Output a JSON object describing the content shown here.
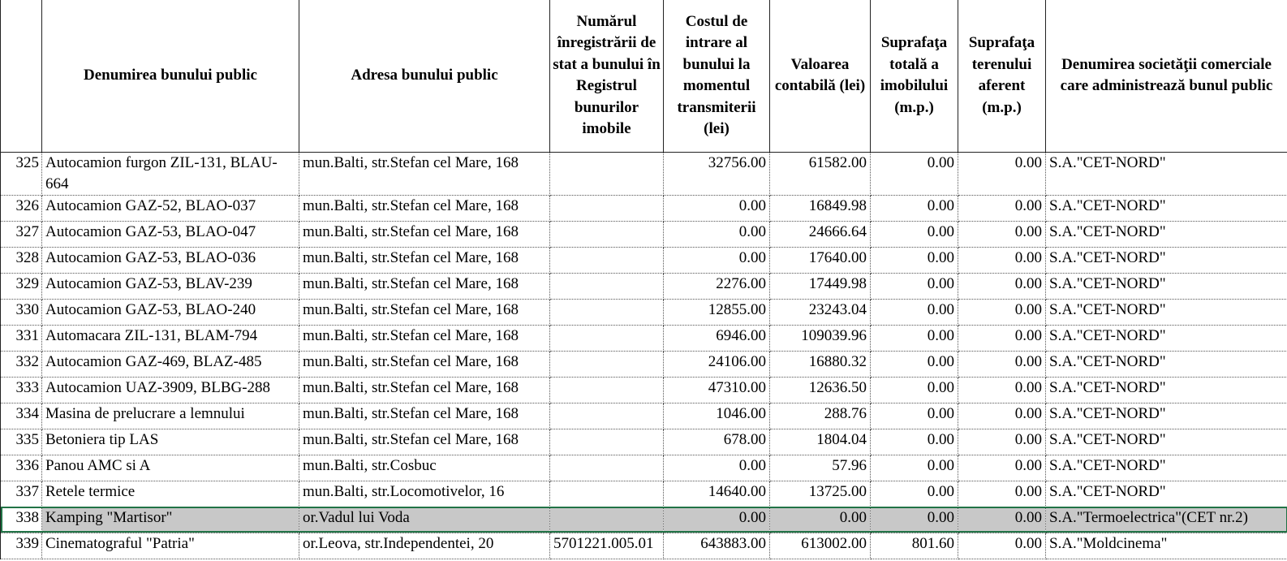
{
  "headers": {
    "num": "",
    "name": "Denumirea bunului public",
    "address": "Adresa bunului public",
    "reg": "Numărul înregistrării de stat a bunului în Registrul bunurilor imobile",
    "cost": "Costul de intrare al bunului la momentul transmiterii (lei)",
    "book": "Valoarea contabilă (lei)",
    "area_total": "Suprafaţa totală a imobilului (m.p.)",
    "area_land": "Suprafaţa terenului aferent (m.p.)",
    "company": "Denumirea societăţii comerciale care administrează bunul public"
  },
  "rows": [
    {
      "num": "325",
      "name": "Autocamion furgon ZIL-131, BLAU-664",
      "address": "mun.Balti, str.Stefan cel Mare, 168",
      "reg": "",
      "cost": "32756.00",
      "book": "61582.00",
      "area_total": "0.00",
      "area_land": "0.00",
      "company": "S.A.\"CET-NORD\""
    },
    {
      "num": "326",
      "name": "Autocamion GAZ-52, BLAO-037",
      "address": "mun.Balti, str.Stefan cel Mare, 168",
      "reg": "",
      "cost": "0.00",
      "book": "16849.98",
      "area_total": "0.00",
      "area_land": "0.00",
      "company": "S.A.\"CET-NORD\""
    },
    {
      "num": "327",
      "name": "Autocamion GAZ-53, BLAO-047",
      "address": "mun.Balti, str.Stefan cel Mare, 168",
      "reg": "",
      "cost": "0.00",
      "book": "24666.64",
      "area_total": "0.00",
      "area_land": "0.00",
      "company": "S.A.\"CET-NORD\""
    },
    {
      "num": "328",
      "name": "Autocamion GAZ-53, BLAO-036",
      "address": "mun.Balti, str.Stefan cel Mare, 168",
      "reg": "",
      "cost": "0.00",
      "book": "17640.00",
      "area_total": "0.00",
      "area_land": "0.00",
      "company": "S.A.\"CET-NORD\""
    },
    {
      "num": "329",
      "name": "Autocamion GAZ-53, BLAV-239",
      "address": "mun.Balti, str.Stefan cel Mare, 168",
      "reg": "",
      "cost": "2276.00",
      "book": "17449.98",
      "area_total": "0.00",
      "area_land": "0.00",
      "company": "S.A.\"CET-NORD\""
    },
    {
      "num": "330",
      "name": "Autocamion GAZ-53, BLAO-240",
      "address": "mun.Balti, str.Stefan cel Mare, 168",
      "reg": "",
      "cost": "12855.00",
      "book": "23243.04",
      "area_total": "0.00",
      "area_land": "0.00",
      "company": "S.A.\"CET-NORD\""
    },
    {
      "num": "331",
      "name": "Automacara ZIL-131, BLAM-794",
      "address": "mun.Balti, str.Stefan cel Mare, 168",
      "reg": "",
      "cost": "6946.00",
      "book": "109039.96",
      "area_total": "0.00",
      "area_land": "0.00",
      "company": "S.A.\"CET-NORD\""
    },
    {
      "num": "332",
      "name": "Autocamion GAZ-469, BLAZ-485",
      "address": "mun.Balti, str.Stefan cel Mare, 168",
      "reg": "",
      "cost": "24106.00",
      "book": "16880.32",
      "area_total": "0.00",
      "area_land": "0.00",
      "company": "S.A.\"CET-NORD\""
    },
    {
      "num": "333",
      "name": "Autocamion UAZ-3909, BLBG-288",
      "address": "mun.Balti, str.Stefan cel Mare, 168",
      "reg": "",
      "cost": "47310.00",
      "book": "12636.50",
      "area_total": "0.00",
      "area_land": "0.00",
      "company": "S.A.\"CET-NORD\""
    },
    {
      "num": "334",
      "name": "Masina de prelucrare a lemnului",
      "address": "mun.Balti, str.Stefan cel Mare, 168",
      "reg": "",
      "cost": "1046.00",
      "book": "288.76",
      "area_total": "0.00",
      "area_land": "0.00",
      "company": "S.A.\"CET-NORD\""
    },
    {
      "num": "335",
      "name": "Betoniera tip LAS",
      "address": "mun.Balti, str.Stefan cel Mare, 168",
      "reg": "",
      "cost": "678.00",
      "book": "1804.04",
      "area_total": "0.00",
      "area_land": "0.00",
      "company": "S.A.\"CET-NORD\""
    },
    {
      "num": "336",
      "name": "Panou AMC si A",
      "address": "mun.Balti, str.Cosbuc",
      "reg": "",
      "cost": "0.00",
      "book": "57.96",
      "area_total": "0.00",
      "area_land": "0.00",
      "company": "S.A.\"CET-NORD\""
    },
    {
      "num": "337",
      "name": "Retele termice",
      "address": "mun.Balti, str.Locomotivelor, 16",
      "reg": "",
      "cost": "14640.00",
      "book": "13725.00",
      "area_total": "0.00",
      "area_land": "0.00",
      "company": "S.A.\"CET-NORD\""
    },
    {
      "num": "338",
      "name": "Kamping \"Martisor\"",
      "address": "or.Vadul lui Voda",
      "reg": "",
      "cost": "0.00",
      "book": "0.00",
      "area_total": "0.00",
      "area_land": "0.00",
      "company": "S.A.\"Termoelectrica\"(CET nr.2)"
    },
    {
      "num": "339",
      "name": "Cinematograful \"Patria\"",
      "address": "or.Leova, str.Independentei, 20",
      "reg": "5701221.005.01",
      "cost": "643883.00",
      "book": "613002.00",
      "area_total": "801.60",
      "area_land": "0.00",
      "company": "S.A.\"Moldcinema\""
    }
  ],
  "selected_row": "338",
  "colors": {
    "selection_fill": "#c8c8c8",
    "selection_border": "#217346"
  }
}
